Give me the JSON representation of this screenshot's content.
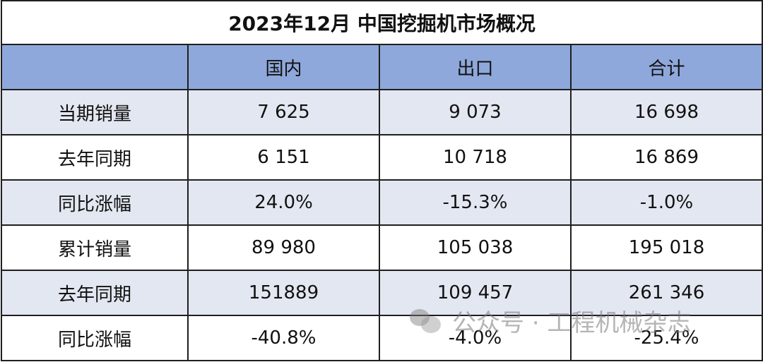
{
  "title": "2023年12月 中国挖掘机市场概况",
  "columns": [
    "",
    "国内",
    "出口",
    "合计"
  ],
  "rows": [
    {
      "label": "当期销量",
      "domestic": "7 625",
      "export": "9 073",
      "total": "16 698"
    },
    {
      "label": "去年同期",
      "domestic": "6 151",
      "export": "10 718",
      "total": "16 869"
    },
    {
      "label": "同比涨幅",
      "domestic": "24.0%",
      "export": "-15.3%",
      "total": "-1.0%"
    },
    {
      "label": "累计销量",
      "domestic": "89 980",
      "export": "105 038",
      "total": "195 018"
    },
    {
      "label": "去年同期",
      "domestic": "151889",
      "export": "109 457",
      "total": "261 346"
    },
    {
      "label": "同比涨幅",
      "domestic": "-40.8%",
      "export": "-4.0%",
      "total": "-25.4%"
    }
  ],
  "watermark": {
    "icon": "wechat-icon",
    "text": "公众号 · 工程机械杂志"
  }
}
